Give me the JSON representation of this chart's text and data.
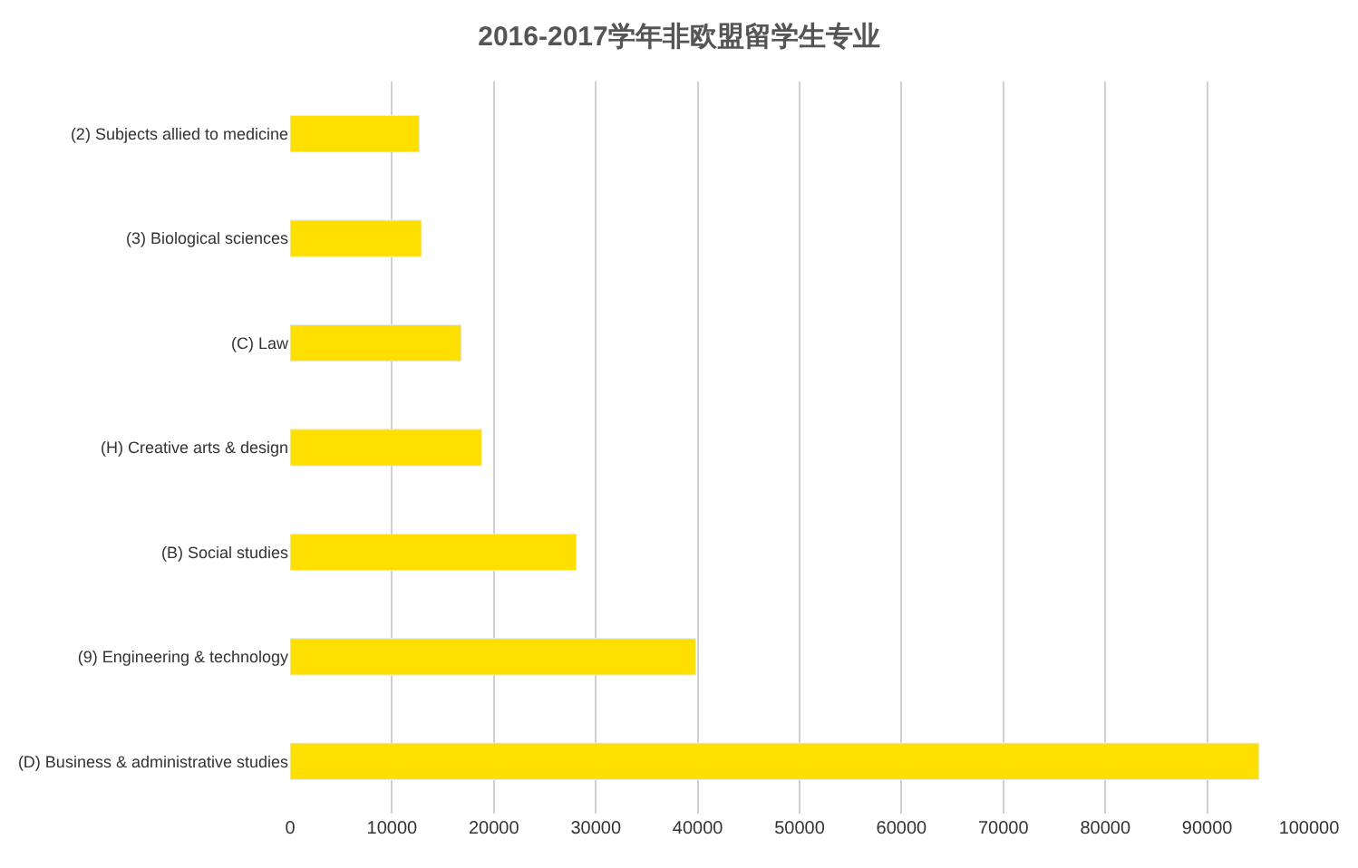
{
  "chart_data": {
    "type": "bar",
    "orientation": "horizontal",
    "title": "2016-2017学年非欧盟留学生专业",
    "categories": [
      "(2) Subjects allied to medicine",
      "(3) Biological sciences",
      "(C) Law",
      "(H) Creative arts & design",
      "(B) Social studies",
      "(9) Engineering & technology",
      "(D) Business & administrative studies"
    ],
    "values": [
      12700,
      12900,
      16800,
      18800,
      28100,
      39800,
      95100
    ],
    "color": "#ffdf00",
    "xlim": [
      0,
      100000
    ],
    "xticks": [
      0,
      10000,
      20000,
      30000,
      40000,
      50000,
      60000,
      70000,
      80000,
      90000,
      100000
    ],
    "grid": "x"
  }
}
